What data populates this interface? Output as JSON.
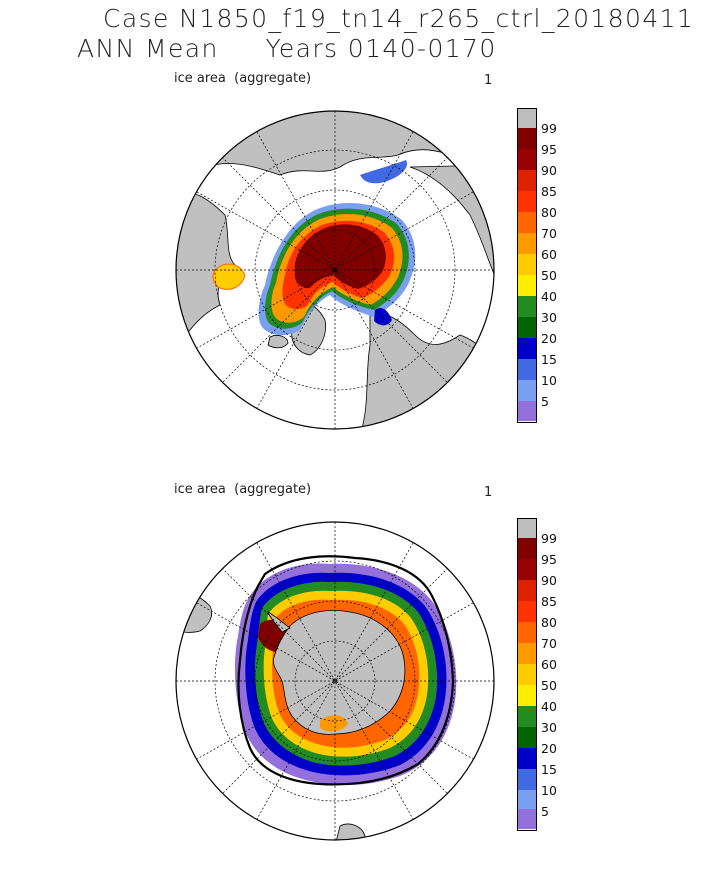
{
  "header": {
    "title_line1": "Case N1850_f19_tn14_r265_ctrl_20180411",
    "title_line2": "ANN Mean     Years 0140-0170"
  },
  "colors": {
    "land": "#c0c0c0",
    "no_data": "#bdbdbd",
    "levels": [
      "#ee66dd",
      "#9370db",
      "#7b9ff0",
      "#4169e1",
      "#0000c8",
      "#006400",
      "#228b22",
      "#ffee00",
      "#ffcc00",
      "#ff9900",
      "#ff6600",
      "#ff3300",
      "#dd2200",
      "#990000",
      "#800000"
    ]
  },
  "colorbar_labels": [
    "99",
    "95",
    "90",
    "85",
    "80",
    "70",
    "60",
    "50",
    "40",
    "30",
    "20",
    "15",
    "10",
    "5"
  ],
  "panels": [
    {
      "id": "north",
      "left_label": "ice area  (aggregate)",
      "right_label": "1"
    },
    {
      "id": "south",
      "left_label": "ice area  (aggregate)",
      "right_label": "1"
    }
  ]
}
